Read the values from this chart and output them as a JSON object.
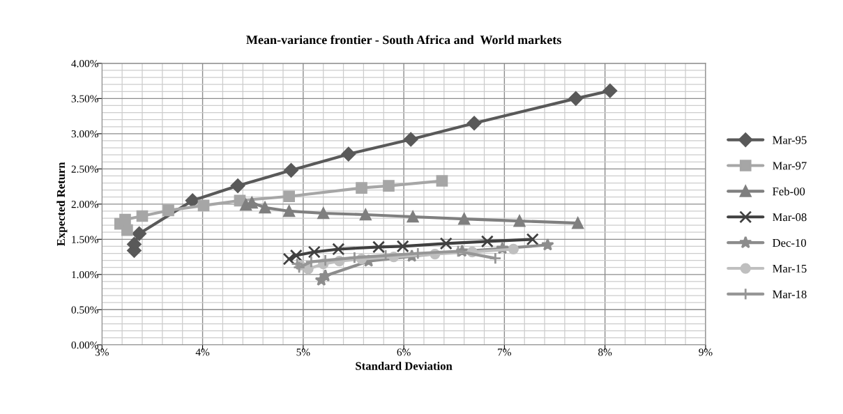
{
  "chart_data": {
    "type": "line",
    "title": "Mean-variance frontier - South Africa and  World markets",
    "xlabel": "Standard Deviation",
    "ylabel": "Expected Return",
    "xlim": [
      3,
      9
    ],
    "ylim": [
      0,
      4
    ],
    "xticks": [
      {
        "value": 3,
        "label": "3%"
      },
      {
        "value": 3.2,
        "label": null
      },
      {
        "value": 3.4,
        "label": null
      },
      {
        "value": 3.6,
        "label": null
      },
      {
        "value": 3.8,
        "label": null
      },
      {
        "value": 4,
        "label": "4%"
      },
      {
        "value": 4.2,
        "label": null
      },
      {
        "value": 4.4,
        "label": null
      },
      {
        "value": 4.6,
        "label": null
      },
      {
        "value": 4.8,
        "label": null
      },
      {
        "value": 5,
        "label": "5%"
      },
      {
        "value": 5.2,
        "label": null
      },
      {
        "value": 5.4,
        "label": null
      },
      {
        "value": 5.6,
        "label": null
      },
      {
        "value": 5.8,
        "label": null
      },
      {
        "value": 6,
        "label": "6%"
      },
      {
        "value": 6.2,
        "label": null
      },
      {
        "value": 6.4,
        "label": null
      },
      {
        "value": 6.6,
        "label": null
      },
      {
        "value": 6.8,
        "label": null
      },
      {
        "value": 7,
        "label": "7%"
      },
      {
        "value": 7.2,
        "label": null
      },
      {
        "value": 7.4,
        "label": null
      },
      {
        "value": 7.6,
        "label": null
      },
      {
        "value": 7.8,
        "label": null
      },
      {
        "value": 8,
        "label": "8%"
      },
      {
        "value": 8.2,
        "label": null
      },
      {
        "value": 8.4,
        "label": null
      },
      {
        "value": 8.6,
        "label": null
      },
      {
        "value": 8.8,
        "label": null
      },
      {
        "value": 9,
        "label": "9%"
      }
    ],
    "yticks": [
      {
        "value": 0,
        "label": "0.00%"
      },
      {
        "value": 0.1,
        "label": null
      },
      {
        "value": 0.2,
        "label": null
      },
      {
        "value": 0.3,
        "label": null
      },
      {
        "value": 0.4,
        "label": null
      },
      {
        "value": 0.5,
        "label": "0.50%"
      },
      {
        "value": 0.6,
        "label": null
      },
      {
        "value": 0.7,
        "label": null
      },
      {
        "value": 0.8,
        "label": null
      },
      {
        "value": 0.9,
        "label": null
      },
      {
        "value": 1,
        "label": "1.00%"
      },
      {
        "value": 1.1,
        "label": null
      },
      {
        "value": 1.2,
        "label": null
      },
      {
        "value": 1.3,
        "label": null
      },
      {
        "value": 1.4,
        "label": null
      },
      {
        "value": 1.5,
        "label": "1.50%"
      },
      {
        "value": 1.6,
        "label": null
      },
      {
        "value": 1.7,
        "label": null
      },
      {
        "value": 1.8,
        "label": null
      },
      {
        "value": 1.9,
        "label": null
      },
      {
        "value": 2,
        "label": "2.00%"
      },
      {
        "value": 2.1,
        "label": null
      },
      {
        "value": 2.2,
        "label": null
      },
      {
        "value": 2.3,
        "label": null
      },
      {
        "value": 2.4,
        "label": null
      },
      {
        "value": 2.5,
        "label": "2.50%"
      },
      {
        "value": 2.6,
        "label": null
      },
      {
        "value": 2.7,
        "label": null
      },
      {
        "value": 2.8,
        "label": null
      },
      {
        "value": 2.9,
        "label": null
      },
      {
        "value": 3,
        "label": "3.00%"
      },
      {
        "value": 3.1,
        "label": null
      },
      {
        "value": 3.2,
        "label": null
      },
      {
        "value": 3.3,
        "label": null
      },
      {
        "value": 3.4,
        "label": null
      },
      {
        "value": 3.5,
        "label": "3.50%"
      },
      {
        "value": 3.6,
        "label": null
      },
      {
        "value": 3.7,
        "label": null
      },
      {
        "value": 3.8,
        "label": null
      },
      {
        "value": 3.9,
        "label": null
      },
      {
        "value": 4,
        "label": "4.00%"
      }
    ],
    "grid": true,
    "legend": "right",
    "line_style": "solid",
    "series": [
      {
        "name": "Mar-95",
        "color": "#595959",
        "marker": "diamond",
        "x": [
          3.32,
          3.32,
          3.37,
          3.9,
          4.35,
          4.88,
          5.45,
          6.07,
          6.7,
          7.71,
          8.05
        ],
        "values": [
          1.34,
          1.43,
          1.58,
          2.05,
          2.26,
          2.48,
          2.71,
          2.92,
          3.15,
          3.5,
          3.61
        ]
      },
      {
        "name": "Mar-97",
        "color": "#a6a6a6",
        "marker": "square",
        "x": [
          3.25,
          3.18,
          3.23,
          3.4,
          3.66,
          4.01,
          4.37,
          4.86,
          5.58,
          5.85,
          6.38
        ],
        "values": [
          1.63,
          1.72,
          1.78,
          1.83,
          1.91,
          1.98,
          2.05,
          2.11,
          2.23,
          2.26,
          2.33
        ]
      },
      {
        "name": "Feb-00",
        "color": "#7f7f7f",
        "marker": "triangle",
        "x": [
          4.43,
          4.49,
          4.62,
          4.86,
          5.2,
          5.62,
          6.09,
          6.6,
          7.15,
          7.73
        ],
        "values": [
          1.99,
          2.02,
          1.95,
          1.9,
          1.87,
          1.85,
          1.82,
          1.79,
          1.76,
          1.73
        ]
      },
      {
        "name": "Mar-08",
        "color": "#404040",
        "marker": "cross",
        "x": [
          4.86,
          4.93,
          5.11,
          5.35,
          5.75,
          5.99,
          6.42,
          6.83,
          7.28
        ],
        "values": [
          1.22,
          1.27,
          1.32,
          1.36,
          1.39,
          1.4,
          1.44,
          1.47,
          1.5
        ]
      },
      {
        "name": "Dec-10",
        "color": "#8c8c8c",
        "marker": "star",
        "x": [
          5.18,
          5.22,
          5.65,
          6.08,
          6.58,
          6.98,
          7.43
        ],
        "values": [
          0.92,
          0.98,
          1.19,
          1.26,
          1.33,
          1.37,
          1.42
        ]
      },
      {
        "name": "Mar-15",
        "color": "#bfbfbf",
        "marker": "circle",
        "x": [
          4.97,
          5.05,
          5.2,
          5.36,
          5.58,
          5.9,
          6.31,
          6.68,
          7.09
        ],
        "values": [
          1.13,
          1.08,
          1.15,
          1.19,
          1.22,
          1.25,
          1.29,
          1.32,
          1.36
        ]
      },
      {
        "name": "Mar-18",
        "color": "#969696",
        "marker": "plus",
        "x": [
          4.94,
          4.96,
          5.08,
          5.22,
          5.51,
          5.82,
          6.14,
          6.54,
          6.91
        ],
        "values": [
          1.15,
          1.1,
          1.18,
          1.2,
          1.24,
          1.27,
          1.3,
          1.33,
          1.23
        ]
      }
    ]
  }
}
